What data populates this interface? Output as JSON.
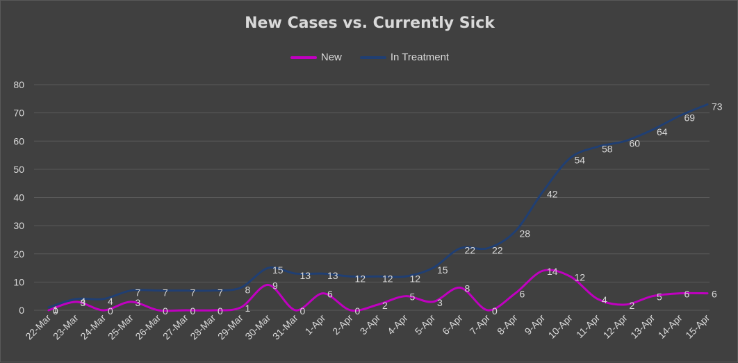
{
  "chart_data": {
    "type": "line",
    "title": "New Cases vs. Currently Sick",
    "xlabel": "",
    "ylabel": "",
    "ylim": [
      0,
      80
    ],
    "yticks": [
      "0",
      "10",
      "20",
      "30",
      "40",
      "50",
      "60",
      "70",
      "80"
    ],
    "grid": true,
    "legend_position": "top",
    "categories": [
      "22-Mar",
      "23-Mar",
      "24-Mar",
      "25-Mar",
      "26-Mar",
      "27-Mar",
      "28-Mar",
      "29-Mar",
      "30-Mar",
      "31-Mar",
      "1-Apr",
      "2-Apr",
      "3-Apr",
      "4-Apr",
      "5-Apr",
      "6-Apr",
      "7-Apr",
      "8-Apr",
      "9-Apr",
      "10-Apr",
      "11-Apr",
      "12-Apr",
      "13-Apr",
      "14-Apr",
      "15-Apr"
    ],
    "series": [
      {
        "name": "New",
        "color": "#c000c0",
        "values": [
          0,
          3,
          0,
          3,
          0,
          0,
          0,
          1,
          9,
          0,
          6,
          0,
          2,
          5,
          3,
          8,
          0,
          6,
          14,
          12,
          4,
          2,
          5,
          6,
          6
        ]
      },
      {
        "name": "In Treatment",
        "color": "#203f73",
        "values": [
          1,
          4,
          4,
          7,
          7,
          7,
          7,
          8,
          15,
          13,
          13,
          12,
          12,
          12,
          15,
          22,
          22,
          28,
          42,
          54,
          58,
          60,
          64,
          69,
          73
        ]
      }
    ]
  }
}
